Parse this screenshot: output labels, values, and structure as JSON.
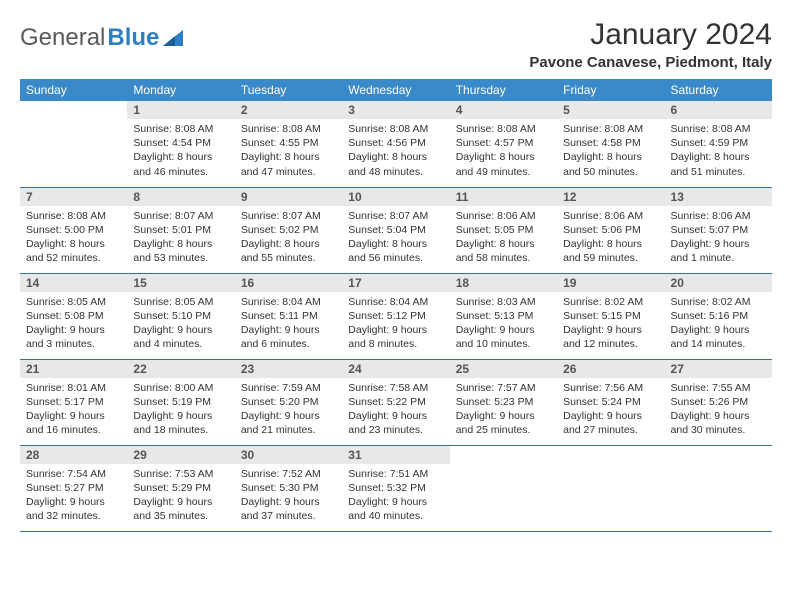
{
  "logo": {
    "general": "General",
    "blue": "Blue"
  },
  "header": {
    "title": "January 2024",
    "location": "Pavone Canavese, Piedmont, Italy"
  },
  "weekdays": [
    "Sunday",
    "Monday",
    "Tuesday",
    "Wednesday",
    "Thursday",
    "Friday",
    "Saturday"
  ],
  "colors": {
    "header_bg": "#3a8ac9",
    "header_text": "#ffffff",
    "daynum_bg": "#e8e8e8",
    "daynum_text": "#555555",
    "row_border": "#3a6fa0",
    "body_text": "#333333",
    "logo_gray": "#5a5a5a",
    "logo_blue": "#2f7fc2"
  },
  "layout": {
    "first_weekday_index": 1,
    "num_days": 31,
    "cols": 7,
    "fontsize_body": 10.5,
    "fontsize_daynum": 12,
    "fontsize_weekday": 12,
    "fontsize_title": 30,
    "fontsize_location": 15
  },
  "days": [
    {
      "n": 1,
      "sunrise": "8:08 AM",
      "sunset": "4:54 PM",
      "daylight": "8 hours and 46 minutes."
    },
    {
      "n": 2,
      "sunrise": "8:08 AM",
      "sunset": "4:55 PM",
      "daylight": "8 hours and 47 minutes."
    },
    {
      "n": 3,
      "sunrise": "8:08 AM",
      "sunset": "4:56 PM",
      "daylight": "8 hours and 48 minutes."
    },
    {
      "n": 4,
      "sunrise": "8:08 AM",
      "sunset": "4:57 PM",
      "daylight": "8 hours and 49 minutes."
    },
    {
      "n": 5,
      "sunrise": "8:08 AM",
      "sunset": "4:58 PM",
      "daylight": "8 hours and 50 minutes."
    },
    {
      "n": 6,
      "sunrise": "8:08 AM",
      "sunset": "4:59 PM",
      "daylight": "8 hours and 51 minutes."
    },
    {
      "n": 7,
      "sunrise": "8:08 AM",
      "sunset": "5:00 PM",
      "daylight": "8 hours and 52 minutes."
    },
    {
      "n": 8,
      "sunrise": "8:07 AM",
      "sunset": "5:01 PM",
      "daylight": "8 hours and 53 minutes."
    },
    {
      "n": 9,
      "sunrise": "8:07 AM",
      "sunset": "5:02 PM",
      "daylight": "8 hours and 55 minutes."
    },
    {
      "n": 10,
      "sunrise": "8:07 AM",
      "sunset": "5:04 PM",
      "daylight": "8 hours and 56 minutes."
    },
    {
      "n": 11,
      "sunrise": "8:06 AM",
      "sunset": "5:05 PM",
      "daylight": "8 hours and 58 minutes."
    },
    {
      "n": 12,
      "sunrise": "8:06 AM",
      "sunset": "5:06 PM",
      "daylight": "8 hours and 59 minutes."
    },
    {
      "n": 13,
      "sunrise": "8:06 AM",
      "sunset": "5:07 PM",
      "daylight": "9 hours and 1 minute."
    },
    {
      "n": 14,
      "sunrise": "8:05 AM",
      "sunset": "5:08 PM",
      "daylight": "9 hours and 3 minutes."
    },
    {
      "n": 15,
      "sunrise": "8:05 AM",
      "sunset": "5:10 PM",
      "daylight": "9 hours and 4 minutes."
    },
    {
      "n": 16,
      "sunrise": "8:04 AM",
      "sunset": "5:11 PM",
      "daylight": "9 hours and 6 minutes."
    },
    {
      "n": 17,
      "sunrise": "8:04 AM",
      "sunset": "5:12 PM",
      "daylight": "9 hours and 8 minutes."
    },
    {
      "n": 18,
      "sunrise": "8:03 AM",
      "sunset": "5:13 PM",
      "daylight": "9 hours and 10 minutes."
    },
    {
      "n": 19,
      "sunrise": "8:02 AM",
      "sunset": "5:15 PM",
      "daylight": "9 hours and 12 minutes."
    },
    {
      "n": 20,
      "sunrise": "8:02 AM",
      "sunset": "5:16 PM",
      "daylight": "9 hours and 14 minutes."
    },
    {
      "n": 21,
      "sunrise": "8:01 AM",
      "sunset": "5:17 PM",
      "daylight": "9 hours and 16 minutes."
    },
    {
      "n": 22,
      "sunrise": "8:00 AM",
      "sunset": "5:19 PM",
      "daylight": "9 hours and 18 minutes."
    },
    {
      "n": 23,
      "sunrise": "7:59 AM",
      "sunset": "5:20 PM",
      "daylight": "9 hours and 21 minutes."
    },
    {
      "n": 24,
      "sunrise": "7:58 AM",
      "sunset": "5:22 PM",
      "daylight": "9 hours and 23 minutes."
    },
    {
      "n": 25,
      "sunrise": "7:57 AM",
      "sunset": "5:23 PM",
      "daylight": "9 hours and 25 minutes."
    },
    {
      "n": 26,
      "sunrise": "7:56 AM",
      "sunset": "5:24 PM",
      "daylight": "9 hours and 27 minutes."
    },
    {
      "n": 27,
      "sunrise": "7:55 AM",
      "sunset": "5:26 PM",
      "daylight": "9 hours and 30 minutes."
    },
    {
      "n": 28,
      "sunrise": "7:54 AM",
      "sunset": "5:27 PM",
      "daylight": "9 hours and 32 minutes."
    },
    {
      "n": 29,
      "sunrise": "7:53 AM",
      "sunset": "5:29 PM",
      "daylight": "9 hours and 35 minutes."
    },
    {
      "n": 30,
      "sunrise": "7:52 AM",
      "sunset": "5:30 PM",
      "daylight": "9 hours and 37 minutes."
    },
    {
      "n": 31,
      "sunrise": "7:51 AM",
      "sunset": "5:32 PM",
      "daylight": "9 hours and 40 minutes."
    }
  ],
  "labels": {
    "sunrise": "Sunrise:",
    "sunset": "Sunset:",
    "daylight": "Daylight:"
  }
}
